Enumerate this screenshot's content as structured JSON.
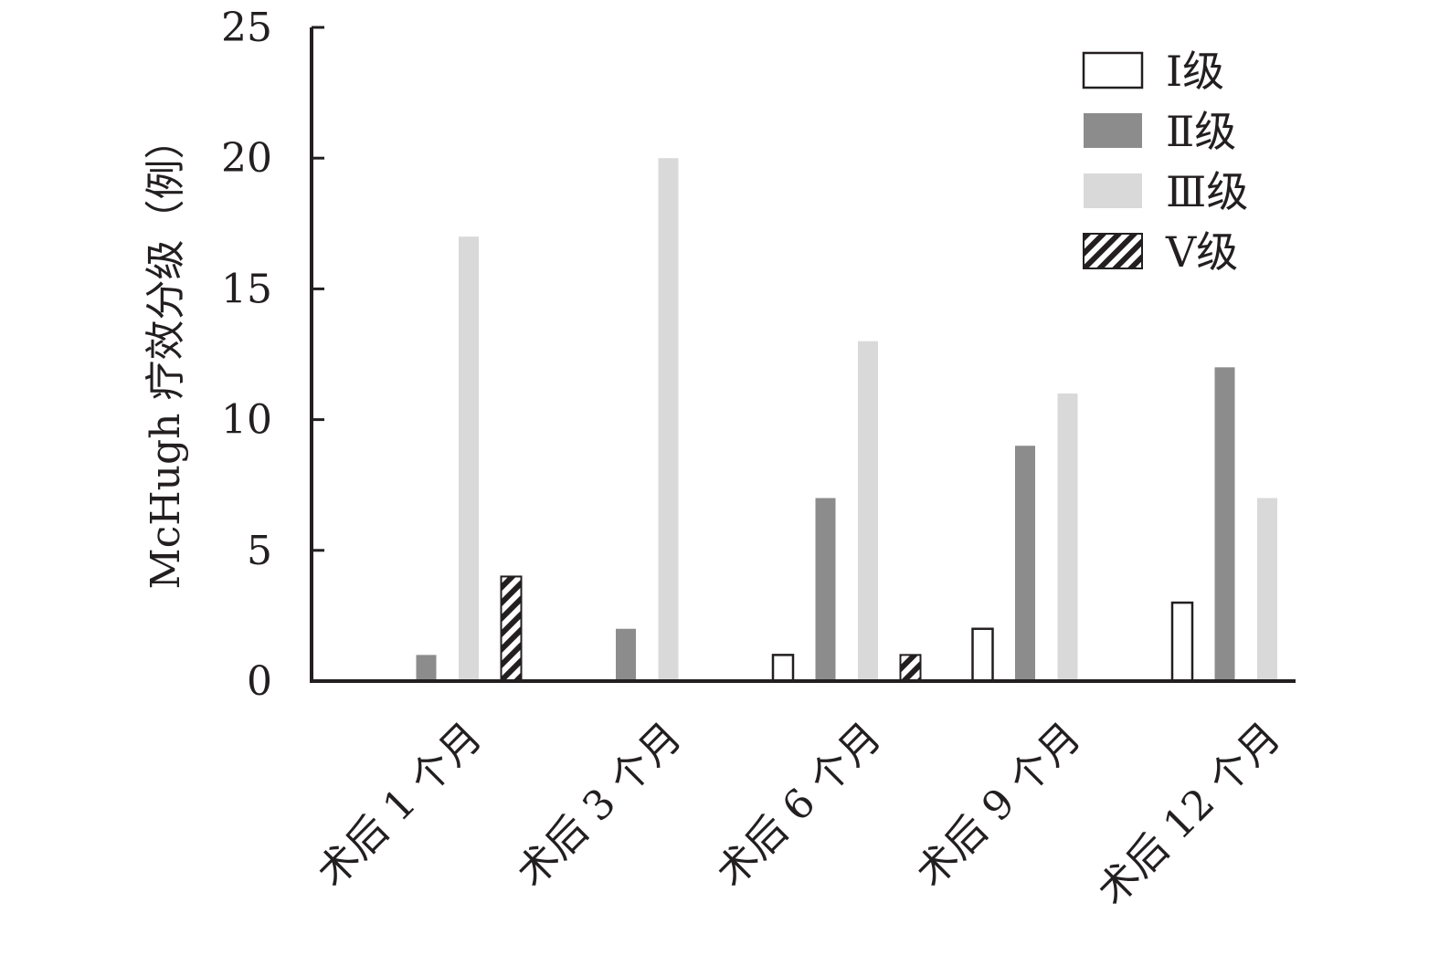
{
  "chart_data": {
    "type": "bar",
    "title": "",
    "xlabel": "",
    "ylabel": "McHugh 疗效分级（例）",
    "ylim": [
      0,
      25
    ],
    "yticks": [
      0,
      5,
      10,
      15,
      20,
      25
    ],
    "grid": false,
    "legend_position": "top-right",
    "categories": [
      "术后 1 个月",
      "术后 3 个月",
      "术后 6 个月",
      "术后 9 个月",
      "术后 12 个月"
    ],
    "series": [
      {
        "name": "Ⅰ级",
        "values": [
          0,
          0,
          1,
          2,
          3
        ],
        "color": "#ffffff",
        "pattern": "outline"
      },
      {
        "name": "Ⅱ级",
        "values": [
          1,
          2,
          7,
          9,
          12
        ],
        "color": "#8c8c8c",
        "pattern": "solid"
      },
      {
        "name": "Ⅲ级",
        "values": [
          17,
          20,
          13,
          11,
          7
        ],
        "color": "#d9d9d9",
        "pattern": "solid"
      },
      {
        "name": "Ⅴ级",
        "values": [
          4,
          0,
          1,
          0,
          0
        ],
        "color": "#231f20",
        "pattern": "hatched"
      }
    ]
  }
}
